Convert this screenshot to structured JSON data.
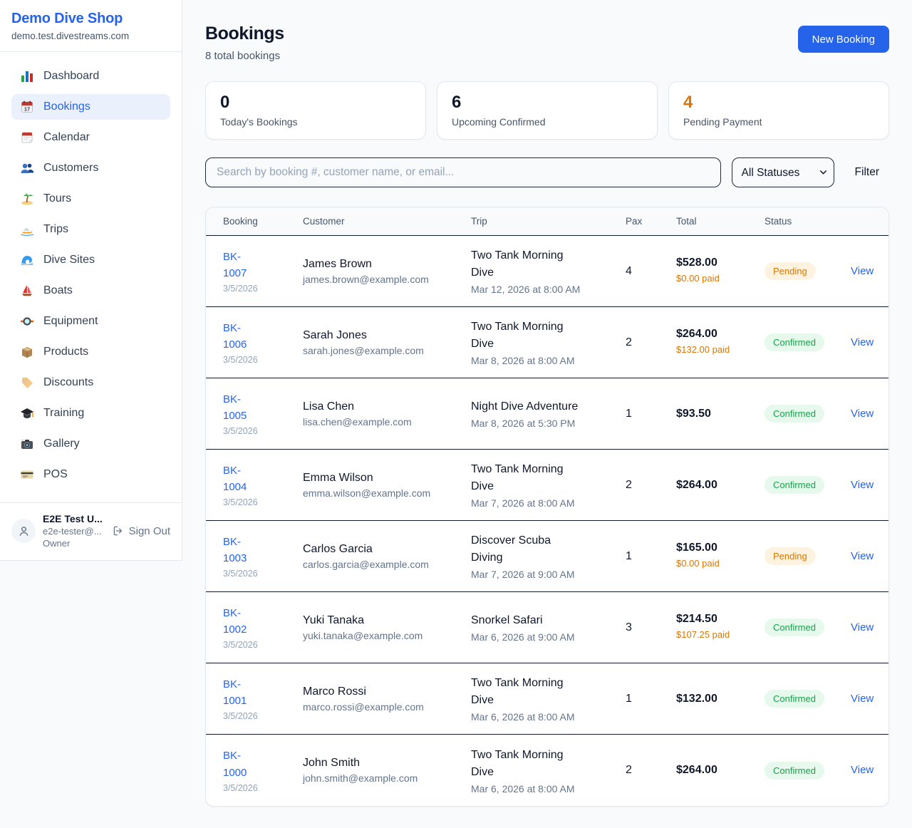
{
  "colors": {
    "accent_blue": "#2563eb",
    "orange": "#d97706",
    "green": "#16a34a",
    "pending_badge_bg": "#fdf3e0",
    "confirmed_badge_bg": "#e7f8ed",
    "page_bg": "#f8fafc",
    "dark_text": "#0f172a",
    "muted_text": "#64748b"
  },
  "sidebar": {
    "brand": {
      "name": "Demo Dive Shop",
      "domain": "demo.test.divestreams.com"
    },
    "nav": [
      {
        "icon": "bar-chart-icon",
        "label": "Dashboard",
        "active": false
      },
      {
        "icon": "bookings-calendar-icon",
        "label": "Bookings",
        "active": true
      },
      {
        "icon": "calendar-icon",
        "label": "Calendar",
        "active": false
      },
      {
        "icon": "users-icon",
        "label": "Customers",
        "active": false
      },
      {
        "icon": "island-icon",
        "label": "Tours",
        "active": false
      },
      {
        "icon": "speedboat-icon",
        "label": "Trips",
        "active": false
      },
      {
        "icon": "wave-icon",
        "label": "Dive Sites",
        "active": false
      },
      {
        "icon": "sailboat-icon",
        "label": "Boats",
        "active": false
      },
      {
        "icon": "dive-mask-icon",
        "label": "Equipment",
        "active": false
      },
      {
        "icon": "package-icon",
        "label": "Products",
        "active": false
      },
      {
        "icon": "tag-icon",
        "label": "Discounts",
        "active": false
      },
      {
        "icon": "graduation-cap-icon",
        "label": "Training",
        "active": false
      },
      {
        "icon": "camera-icon",
        "label": "Gallery",
        "active": false
      },
      {
        "icon": "credit-card-icon",
        "label": "POS",
        "active": false
      }
    ],
    "user": {
      "name": "E2E Test U...",
      "email": "e2e-tester@...",
      "role": "Owner",
      "sign_out_label": "Sign Out"
    }
  },
  "header": {
    "title": "Bookings",
    "subtitle": "8 total bookings",
    "new_booking_label": "New Booking"
  },
  "stats": [
    {
      "value": "0",
      "label": "Today's Bookings",
      "highlight": false
    },
    {
      "value": "6",
      "label": "Upcoming Confirmed",
      "highlight": false
    },
    {
      "value": "4",
      "label": "Pending Payment",
      "highlight": true
    }
  ],
  "filters": {
    "search_placeholder": "Search by booking #, customer name, or email...",
    "status_selected": "All Statuses",
    "filter_label": "Filter"
  },
  "table": {
    "headers": [
      "Booking",
      "Customer",
      "Trip",
      "Pax",
      "Total",
      "Status"
    ],
    "view_label": "View",
    "rows": [
      {
        "booking_id": "BK-1007",
        "booking_date": "3/5/2026",
        "customer_name": "James Brown",
        "customer_email": "james.brown@example.com",
        "trip_name": "Two Tank Morning Dive",
        "trip_datetime": "Mar 12, 2026 at 8:00 AM",
        "pax": "4",
        "total": "$528.00",
        "paid": "$0.00 paid",
        "status": "Pending"
      },
      {
        "booking_id": "BK-1006",
        "booking_date": "3/5/2026",
        "customer_name": "Sarah Jones",
        "customer_email": "sarah.jones@example.com",
        "trip_name": "Two Tank Morning Dive",
        "trip_datetime": "Mar 8, 2026 at 8:00 AM",
        "pax": "2",
        "total": "$264.00",
        "paid": "$132.00 paid",
        "status": "Confirmed"
      },
      {
        "booking_id": "BK-1005",
        "booking_date": "3/5/2026",
        "customer_name": "Lisa Chen",
        "customer_email": "lisa.chen@example.com",
        "trip_name": "Night Dive Adventure",
        "trip_datetime": "Mar 8, 2026 at 5:30 PM",
        "pax": "1",
        "total": "$93.50",
        "paid": null,
        "status": "Confirmed"
      },
      {
        "booking_id": "BK-1004",
        "booking_date": "3/5/2026",
        "customer_name": "Emma Wilson",
        "customer_email": "emma.wilson@example.com",
        "trip_name": "Two Tank Morning Dive",
        "trip_datetime": "Mar 7, 2026 at 8:00 AM",
        "pax": "2",
        "total": "$264.00",
        "paid": null,
        "status": "Confirmed"
      },
      {
        "booking_id": "BK-1003",
        "booking_date": "3/5/2026",
        "customer_name": "Carlos Garcia",
        "customer_email": "carlos.garcia@example.com",
        "trip_name": "Discover Scuba Diving",
        "trip_datetime": "Mar 7, 2026 at 9:00 AM",
        "pax": "1",
        "total": "$165.00",
        "paid": "$0.00 paid",
        "status": "Pending"
      },
      {
        "booking_id": "BK-1002",
        "booking_date": "3/5/2026",
        "customer_name": "Yuki Tanaka",
        "customer_email": "yuki.tanaka@example.com",
        "trip_name": "Snorkel Safari",
        "trip_datetime": "Mar 6, 2026 at 9:00 AM",
        "pax": "3",
        "total": "$214.50",
        "paid": "$107.25 paid",
        "status": "Confirmed"
      },
      {
        "booking_id": "BK-1001",
        "booking_date": "3/5/2026",
        "customer_name": "Marco Rossi",
        "customer_email": "marco.rossi@example.com",
        "trip_name": "Two Tank Morning Dive",
        "trip_datetime": "Mar 6, 2026 at 8:00 AM",
        "pax": "1",
        "total": "$132.00",
        "paid": null,
        "status": "Confirmed"
      },
      {
        "booking_id": "BK-1000",
        "booking_date": "3/5/2026",
        "customer_name": "John Smith",
        "customer_email": "john.smith@example.com",
        "trip_name": "Two Tank Morning Dive",
        "trip_datetime": "Mar 6, 2026 at 8:00 AM",
        "pax": "2",
        "total": "$264.00",
        "paid": null,
        "status": "Confirmed"
      }
    ]
  }
}
